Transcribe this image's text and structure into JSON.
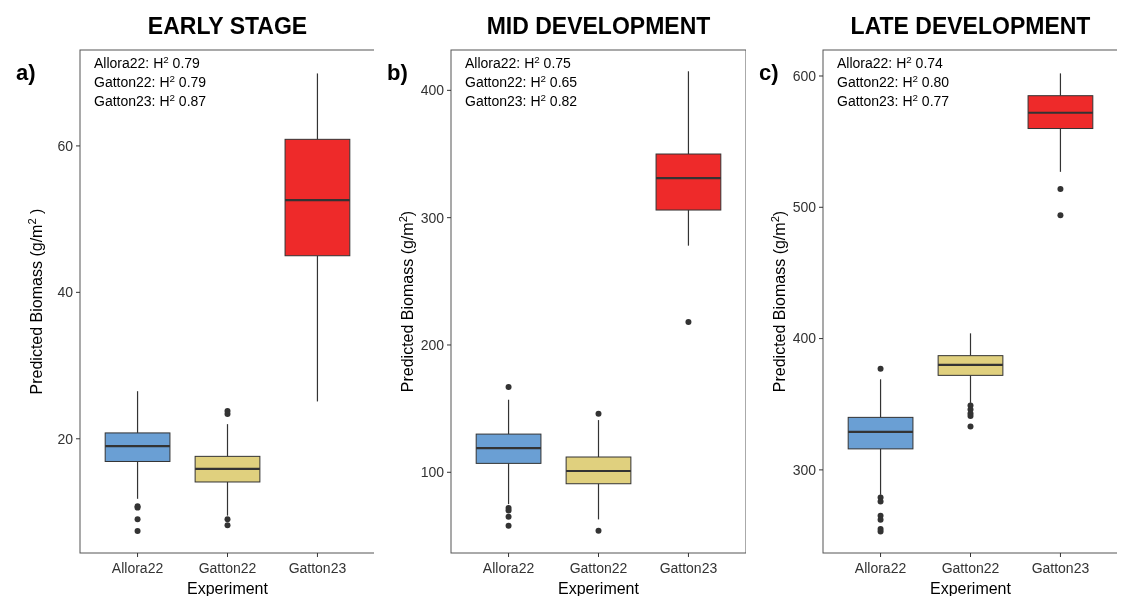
{
  "chart_data": [
    {
      "type": "box",
      "title": "EARLY STAGE",
      "xlabel": "Experiment",
      "ylabel": "Predicted Biomass (g/m$^{2}$ )",
      "categories": [
        "Allora22",
        "Gatton22",
        "Gatton23"
      ],
      "colors": [
        "#6a9fd4",
        "#e0d07e",
        "#ee2a2a"
      ],
      "ylim": [
        4.4,
        73.1
      ],
      "yticks": [
        20,
        40,
        60
      ],
      "boxes": [
        {
          "low": 11.8,
          "q1": 16.9,
          "median": 19.0,
          "q3": 20.8,
          "high": 26.5,
          "outliers": [
            10.8,
            10.6,
            9.0,
            7.4
          ]
        },
        {
          "low": 9.5,
          "q1": 14.1,
          "median": 15.9,
          "q3": 17.6,
          "high": 22.0,
          "outliers": [
            23.8,
            23.4,
            9.0,
            8.2
          ]
        },
        {
          "low": 25.1,
          "q1": 45.0,
          "median": 52.6,
          "q3": 60.9,
          "high": 69.9
        }
      ],
      "annotations": [
        "a)",
        "Allora22: H$^{2}$ 0.79",
        "Gatton22: H$^{2}$ 0.79",
        "Gatton23: H$^{2}$ 0.87"
      ]
    },
    {
      "type": "box",
      "title": "MID DEVELOPMENT",
      "xlabel": "Experiment",
      "ylabel": "Predicted Biomass (g/m$^{2}$)",
      "categories": [
        "Allora22",
        "Gatton22",
        "Gatton23"
      ],
      "colors": [
        "#6a9fd4",
        "#e0d07e",
        "#ee2a2a"
      ],
      "ylim": [
        36.6,
        431.7
      ],
      "yticks": [
        100,
        200,
        300,
        400
      ],
      "boxes": [
        {
          "low": 75,
          "q1": 107,
          "median": 119,
          "q3": 130,
          "high": 157,
          "outliers": [
            167,
            72,
            70,
            65,
            58
          ]
        },
        {
          "low": 63,
          "q1": 91,
          "median": 101,
          "q3": 112,
          "high": 141,
          "outliers": [
            146,
            54
          ]
        },
        {
          "low": 278,
          "q1": 306,
          "median": 331,
          "q3": 350,
          "high": 415,
          "outliers": [
            218
          ]
        }
      ],
      "annotations": [
        "b)",
        "Allora22: H$^{2}$ 0.75",
        "Gatton22: H$^{2}$ 0.65",
        "Gatton23: H$^{2}$ 0.82"
      ]
    },
    {
      "type": "box",
      "title": "LATE DEVELOPMENT",
      "xlabel": "Experiment",
      "ylabel": "Predicted Biomass (g/m$^{2}$)",
      "categories": [
        "Allora22",
        "Gatton22",
        "Gatton23"
      ],
      "colors": [
        "#6a9fd4",
        "#e0d07e",
        "#ee2a2a"
      ],
      "ylim": [
        236.7,
        619.8
      ],
      "yticks": [
        300,
        400,
        500,
        600
      ],
      "boxes": [
        {
          "low": 281,
          "q1": 316,
          "median": 329,
          "q3": 340,
          "high": 369,
          "outliers": [
            377,
            279,
            276,
            265,
            262,
            255,
            253
          ]
        },
        {
          "low": 351,
          "q1": 372,
          "median": 380,
          "q3": 387,
          "high": 404,
          "outliers": [
            349,
            346,
            343,
            341,
            333
          ]
        },
        {
          "low": 527,
          "q1": 560,
          "median": 572,
          "q3": 585,
          "high": 602,
          "outliers": [
            514,
            494
          ]
        }
      ],
      "annotations": [
        "c)",
        "Allora22: H$^{2}$ 0.74",
        "Gatton22: H$^{2}$ 0.80",
        "Gatton23: H$^{2}$ 0.77"
      ]
    }
  ]
}
